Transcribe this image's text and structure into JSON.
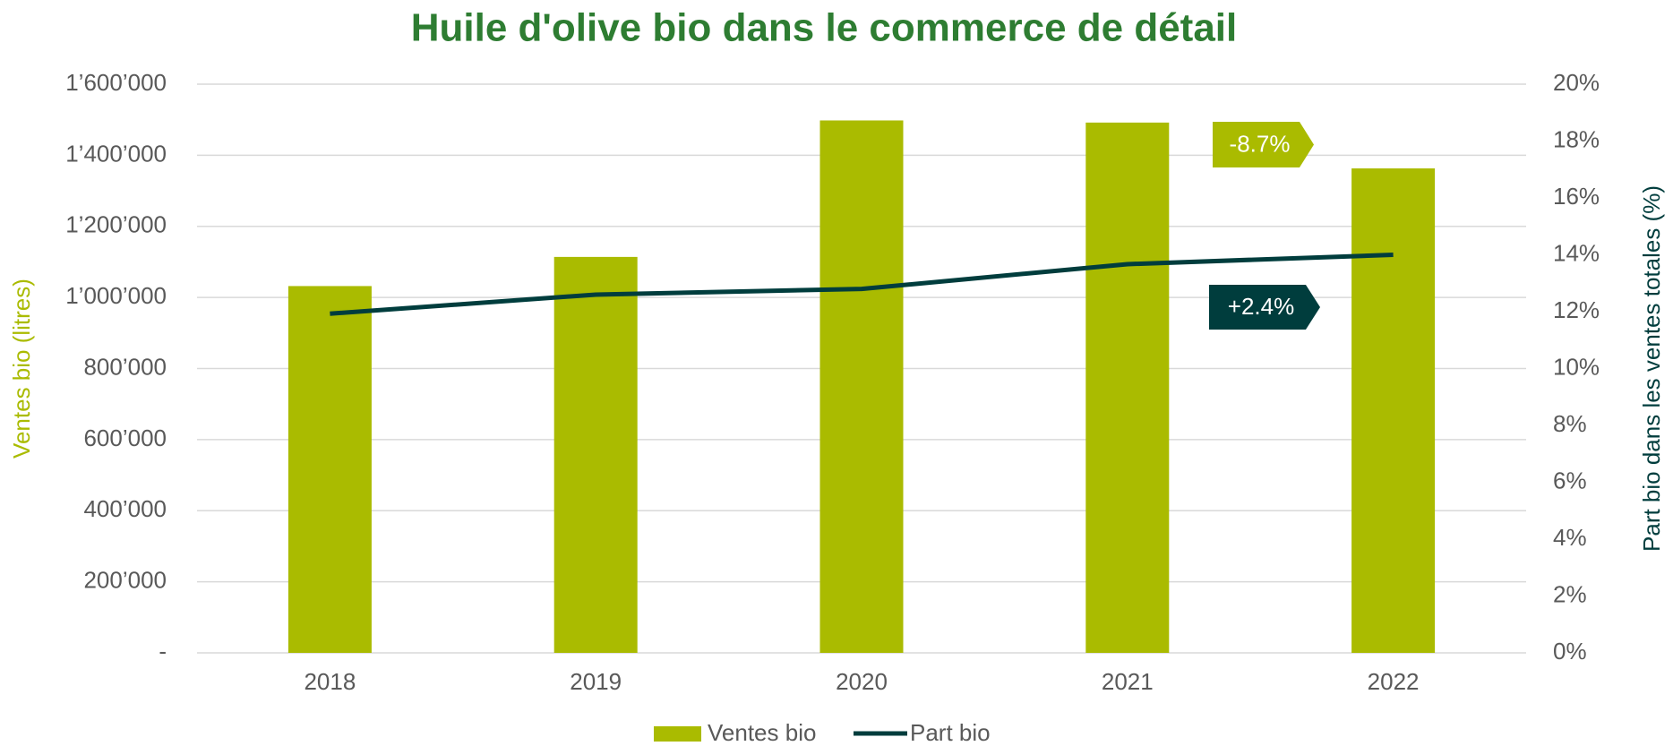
{
  "chart_data": {
    "type": "bar",
    "title": "Huile d'olive bio dans le commerce de détail",
    "categories": [
      "2018",
      "2019",
      "2020",
      "2021",
      "2022"
    ],
    "series": [
      {
        "name": "Ventes bio",
        "color": "#aabb00",
        "values": [
          1032000,
          1114000,
          1498000,
          1492000,
          1363000
        ]
      },
      {
        "name": "Part bio",
        "color": "#003d3d",
        "type": "line",
        "axis": "y2",
        "values": [
          11.93,
          12.6,
          12.8,
          13.67,
          14.0
        ]
      }
    ],
    "ylabel": "Ventes bio (litres)",
    "y2label": "Part bio dans les ventes totales (%)",
    "ylim": [
      0,
      1600000
    ],
    "yticks": [
      {
        "value": 0,
        "label": "-"
      },
      {
        "value": 200000,
        "label": "200’000"
      },
      {
        "value": 400000,
        "label": "400’000"
      },
      {
        "value": 600000,
        "label": "600’000"
      },
      {
        "value": 800000,
        "label": "800’000"
      },
      {
        "value": 1000000,
        "label": "1’000’000"
      },
      {
        "value": 1200000,
        "label": "1’200’000"
      },
      {
        "value": 1400000,
        "label": "1’400’000"
      },
      {
        "value": 1600000,
        "label": "1’600’000"
      }
    ],
    "y2lim": [
      0,
      20
    ],
    "y2ticks": [
      {
        "value": 0,
        "label": "0%"
      },
      {
        "value": 2,
        "label": "2%"
      },
      {
        "value": 4,
        "label": "4%"
      },
      {
        "value": 6,
        "label": "6%"
      },
      {
        "value": 8,
        "label": "8%"
      },
      {
        "value": 10,
        "label": "10%"
      },
      {
        "value": 12,
        "label": "12%"
      },
      {
        "value": 14,
        "label": "14%"
      },
      {
        "value": 16,
        "label": "16%"
      },
      {
        "value": 18,
        "label": "18%"
      },
      {
        "value": 20,
        "label": "20%"
      }
    ],
    "grid": true,
    "legend": "bottom",
    "annotations": [
      {
        "text": "-8.7%",
        "color": "#aabb00"
      },
      {
        "text": "+2.4%",
        "color": "#003d3d"
      }
    ]
  }
}
